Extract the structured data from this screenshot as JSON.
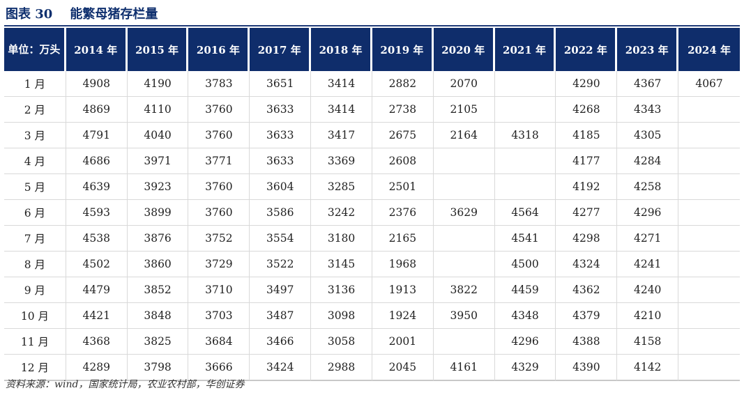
{
  "header": {
    "title": "图表 30    能繁母猪存栏量"
  },
  "chart_data": {
    "type": "table",
    "title": "能繁母猪存栏量",
    "unit_label": "单位：万头",
    "columns": [
      "2014 年",
      "2015 年",
      "2016 年",
      "2017 年",
      "2018 年",
      "2019 年",
      "2020 年",
      "2021 年",
      "2022 年",
      "2023 年",
      "2024 年"
    ],
    "rows": [
      {
        "month": "1 月",
        "values": [
          "4908",
          "4190",
          "3783",
          "3651",
          "3414",
          "2882",
          "2070",
          "",
          "4290",
          "4367",
          "4067"
        ]
      },
      {
        "month": "2 月",
        "values": [
          "4869",
          "4110",
          "3760",
          "3633",
          "3414",
          "2738",
          "2105",
          "",
          "4268",
          "4343",
          ""
        ]
      },
      {
        "month": "3 月",
        "values": [
          "4791",
          "4040",
          "3760",
          "3633",
          "3417",
          "2675",
          "2164",
          "4318",
          "4185",
          "4305",
          ""
        ]
      },
      {
        "month": "4 月",
        "values": [
          "4686",
          "3971",
          "3771",
          "3633",
          "3369",
          "2608",
          "",
          "",
          "4177",
          "4284",
          ""
        ]
      },
      {
        "month": "5 月",
        "values": [
          "4639",
          "3923",
          "3760",
          "3604",
          "3285",
          "2501",
          "",
          "",
          "4192",
          "4258",
          ""
        ]
      },
      {
        "month": "6 月",
        "values": [
          "4593",
          "3899",
          "3760",
          "3586",
          "3242",
          "2376",
          "3629",
          "4564",
          "4277",
          "4296",
          ""
        ]
      },
      {
        "month": "7 月",
        "values": [
          "4538",
          "3876",
          "3752",
          "3554",
          "3180",
          "2165",
          "",
          "4541",
          "4298",
          "4271",
          ""
        ]
      },
      {
        "month": "8 月",
        "values": [
          "4502",
          "3860",
          "3729",
          "3522",
          "3145",
          "1968",
          "",
          "4500",
          "4324",
          "4241",
          ""
        ]
      },
      {
        "month": "9 月",
        "values": [
          "4479",
          "3852",
          "3710",
          "3497",
          "3136",
          "1913",
          "3822",
          "4459",
          "4362",
          "4240",
          ""
        ]
      },
      {
        "month": "10 月",
        "values": [
          "4421",
          "3848",
          "3703",
          "3487",
          "3098",
          "1924",
          "3950",
          "4348",
          "4379",
          "4210",
          ""
        ]
      },
      {
        "month": "11 月",
        "values": [
          "4368",
          "3825",
          "3684",
          "3466",
          "3058",
          "2001",
          "",
          "4296",
          "4388",
          "4158",
          ""
        ]
      },
      {
        "month": "12 月",
        "values": [
          "4289",
          "3798",
          "3666",
          "3424",
          "2988",
          "2045",
          "4161",
          "4329",
          "4390",
          "4142",
          ""
        ]
      }
    ]
  },
  "footer": {
    "source": "资料来源：wind，国家统计局，农业农村部，华创证券"
  },
  "colors": {
    "header_bg": "#0f2d6b",
    "title": "#0e2f6e"
  }
}
